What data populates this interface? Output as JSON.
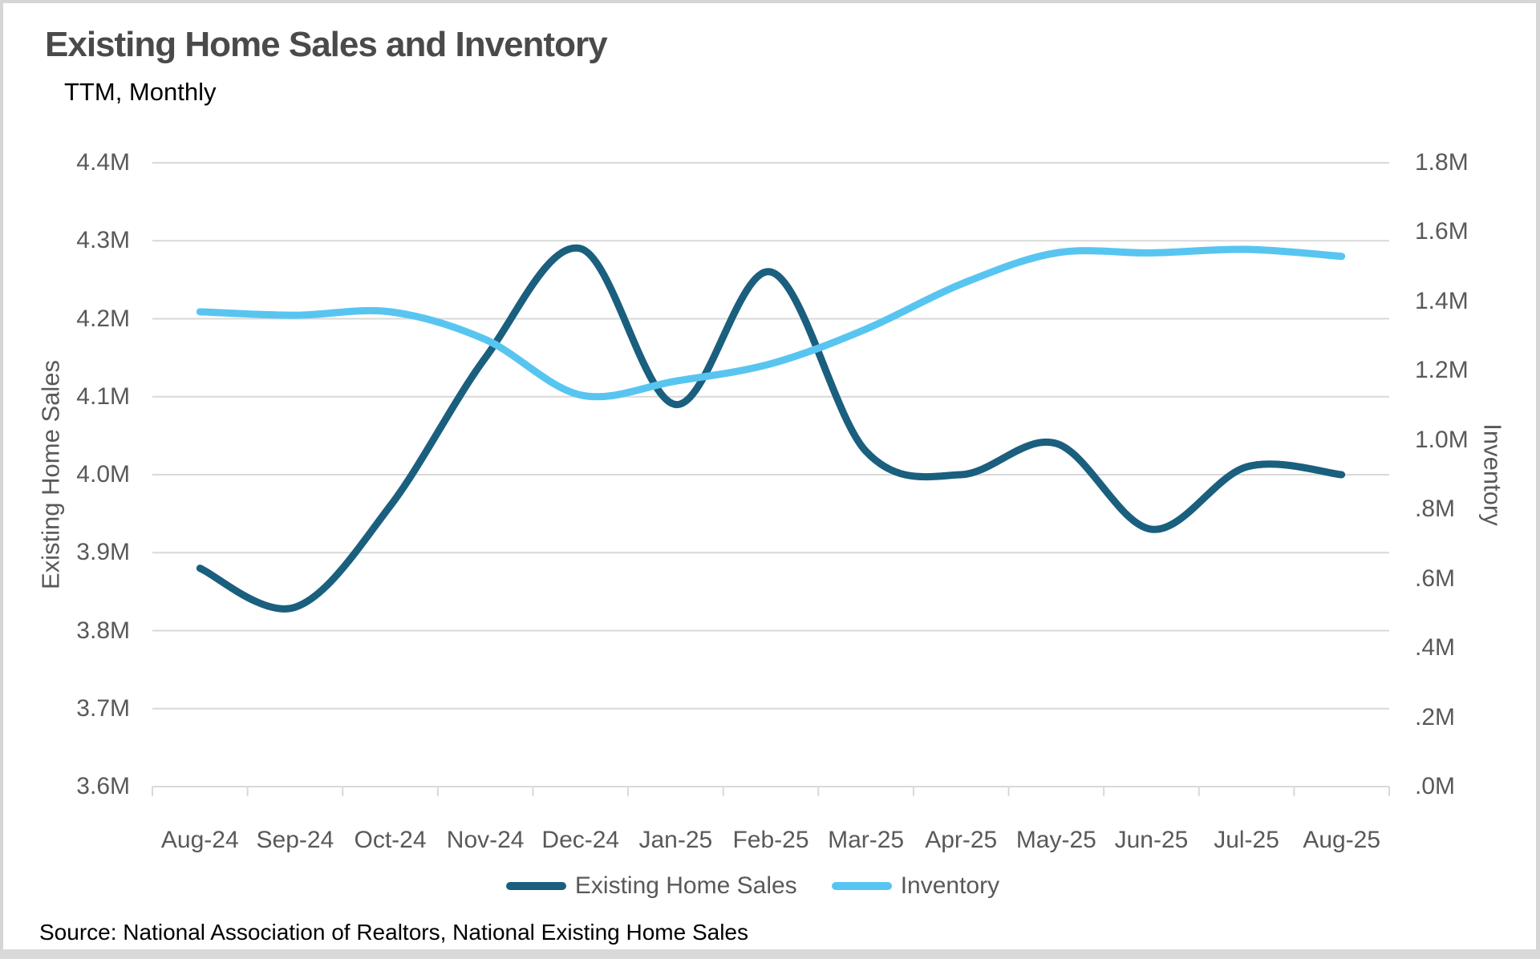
{
  "header": {
    "title": "Existing Home Sales and Inventory",
    "subtitle": "TTM, Monthly"
  },
  "source_note": "Source: National Association of Realtors, National Existing Home Sales",
  "colors": {
    "sales_line": "#1A5F7E",
    "inventory_line": "#58C5F1",
    "gridline": "#D9D9D9",
    "axis_text": "#595959",
    "title_text": "#4A4A4A",
    "border": "#D6D6D6"
  },
  "chart_data": {
    "type": "line",
    "title": "Existing Home Sales and Inventory",
    "subtitle": "TTM, Monthly",
    "categories": [
      "Aug-24",
      "Sep-24",
      "Oct-24",
      "Nov-24",
      "Dec-24",
      "Jan-25",
      "Feb-25",
      "Mar-25",
      "Apr-25",
      "May-25",
      "Jun-25",
      "Jul-25",
      "Aug-25"
    ],
    "series": [
      {
        "name": "Existing Home Sales",
        "axis": "left",
        "color": "#1A5F7E",
        "unit": "M",
        "values": [
          3.88,
          3.83,
          3.96,
          4.15,
          4.29,
          4.09,
          4.26,
          4.03,
          4.0,
          4.04,
          3.93,
          4.01,
          4.0
        ]
      },
      {
        "name": "Inventory",
        "axis": "right",
        "color": "#58C5F1",
        "unit": "M",
        "values": [
          1.37,
          1.36,
          1.37,
          1.29,
          1.13,
          1.17,
          1.22,
          1.32,
          1.45,
          1.54,
          1.54,
          1.55,
          1.53
        ]
      }
    ],
    "left_axis": {
      "title": "Existing Home Sales",
      "min": 3.6,
      "max": 4.4,
      "tick_step": 0.1,
      "tick_labels": [
        "4.4M",
        "4.3M",
        "4.2M",
        "4.1M",
        "4.0M",
        "3.9M",
        "3.8M",
        "3.7M",
        "3.6M"
      ]
    },
    "right_axis": {
      "title": "Inventory",
      "min": 0.0,
      "max": 1.8,
      "tick_step": 0.2,
      "tick_labels": [
        "1.8M",
        "1.6M",
        "1.4M",
        "1.2M",
        "1.0M",
        ".8M",
        ".6M",
        ".4M",
        ".2M",
        ".0M"
      ]
    },
    "grid": true,
    "smooth": true,
    "legend_position": "bottom"
  }
}
